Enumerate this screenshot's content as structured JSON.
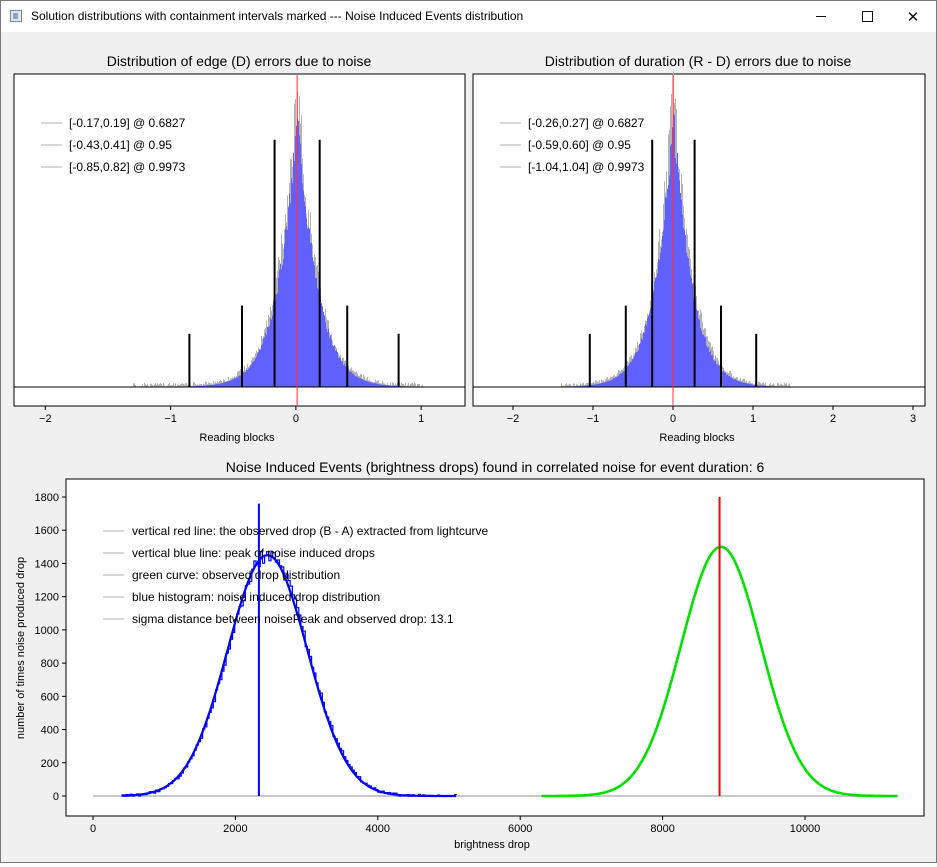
{
  "window": {
    "title": "Solution distributions with containment intervals marked --- Noise Induced Events distribution"
  },
  "chart_data": [
    {
      "type": "bar",
      "title": "Distribution of edge (D) errors due to noise",
      "xlabel": "Reading blocks",
      "ylabel": "",
      "xlim": [
        -2.25,
        1.35
      ],
      "xticks": [
        -2,
        -1,
        0,
        1
      ],
      "distribution": {
        "center": 0.01,
        "sigma": 0.175,
        "shape": "laplace-like",
        "tail": [
          -1.3,
          1.0
        ]
      },
      "center_line": 0.01,
      "legend": [
        {
          "label": "[-0.17,0.19] @ 0.6827",
          "color": "#d8d8d8"
        },
        {
          "label": "[-0.43,0.41] @ 0.95",
          "color": "#d8d8d8"
        },
        {
          "label": "[-0.85,0.82] @ 0.9973",
          "color": "#d8d8d8"
        }
      ],
      "interval_markers": [
        {
          "x": -0.85,
          "rel_height": 0.17
        },
        {
          "x": -0.43,
          "rel_height": 0.26
        },
        {
          "x": -0.17,
          "rel_height": 0.79
        },
        {
          "x": 0.19,
          "rel_height": 0.79
        },
        {
          "x": 0.41,
          "rel_height": 0.26
        },
        {
          "x": 0.82,
          "rel_height": 0.17
        }
      ],
      "colors": {
        "histogram": "#6161ff",
        "outline": "#b4b4b4",
        "marker": "#000000",
        "center": "#ff3030"
      }
    },
    {
      "type": "bar",
      "title": "Distribution of duration (R - D) errors due to noise",
      "xlabel": "Reading blocks",
      "ylabel": "",
      "xlim": [
        -2.5,
        3.15
      ],
      "xticks": [
        -2,
        -1,
        0,
        1,
        2,
        3
      ],
      "distribution": {
        "center": 0.0,
        "sigma": 0.26,
        "shape": "laplace-like",
        "tail": [
          -1.4,
          1.45
        ]
      },
      "center_line": 0.0,
      "legend": [
        {
          "label": "[-0.26,0.27] @ 0.6827",
          "color": "#d8d8d8"
        },
        {
          "label": "[-0.59,0.60] @ 0.95",
          "color": "#d8d8d8"
        },
        {
          "label": "[-1.04,1.04] @ 0.9973",
          "color": "#d8d8d8"
        }
      ],
      "interval_markers": [
        {
          "x": -1.04,
          "rel_height": 0.17
        },
        {
          "x": -0.59,
          "rel_height": 0.26
        },
        {
          "x": -0.26,
          "rel_height": 0.79
        },
        {
          "x": 0.27,
          "rel_height": 0.79
        },
        {
          "x": 0.6,
          "rel_height": 0.26
        },
        {
          "x": 1.04,
          "rel_height": 0.17
        }
      ],
      "colors": {
        "histogram": "#6161ff",
        "outline": "#b4b4b4",
        "marker": "#000000",
        "center": "#ff3030"
      }
    },
    {
      "type": "line",
      "title": "Noise Induced Events (brightness drops) found in correlated noise for event duration: 6",
      "xlabel": "brightness drop",
      "ylabel": "number of times noise produced drop",
      "xlim": [
        -400,
        11800
      ],
      "ylim": [
        -100,
        1850
      ],
      "xticks": [
        0,
        2000,
        4000,
        6000,
        8000,
        10000
      ],
      "yticks": [
        0,
        200,
        400,
        600,
        800,
        1000,
        1200,
        1400,
        1600,
        1800
      ],
      "baseline": {
        "x": [
          0,
          11300
        ],
        "y": 0
      },
      "series": [
        {
          "name": "noise induced drop distribution",
          "kind": "histogram",
          "mean": 2450,
          "sigma": 560,
          "peak": 1450,
          "range": [
            400,
            5100
          ],
          "color": "#0000ff"
        },
        {
          "name": "observed drop distribution",
          "kind": "curve",
          "mean": 8820,
          "sigma": 560,
          "peak": 1500,
          "range": [
            6300,
            11300
          ],
          "color": "#00e000"
        }
      ],
      "vertical_lines": [
        {
          "name": "noise peak",
          "x": 2330,
          "y_top": 1760,
          "color": "#0000ff"
        },
        {
          "name": "observed drop",
          "x": 8800,
          "y_top": 1800,
          "color": "#ff0000"
        }
      ],
      "legend": [
        {
          "label": "vertical red line: the observed drop (B - A) extracted from lightcurve",
          "color": "#d8d8d8"
        },
        {
          "label": "vertical blue line: peak of noise induced drops",
          "color": "#d8d8d8"
        },
        {
          "label": "green curve: observed drop distribution",
          "color": "#d8d8d8"
        },
        {
          "label": "blue histogram: noise induced drop distribution",
          "color": "#d8d8d8"
        },
        {
          "label": "sigma distance between noisePeak and observed drop: 13.1",
          "color": "#d8d8d8"
        }
      ]
    }
  ]
}
